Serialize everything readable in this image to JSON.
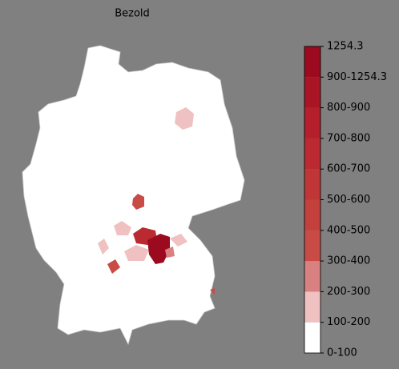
{
  "map": {
    "title": "Bezold",
    "legend": {
      "labels": [
        "1254.3",
        "900-1254.3",
        "800-900",
        "700-800",
        "600-700",
        "500-600",
        "400-500",
        "300-400",
        "200-300",
        "100-200",
        "0-100"
      ],
      "colors": [
        "#9b0a1f",
        "#aa1526",
        "#b41f2b",
        "#bb2a30",
        "#c03536",
        "#c4403d",
        "#c84b46",
        "#d98080",
        "#f0c1c1",
        "#ffffff"
      ]
    }
  }
}
